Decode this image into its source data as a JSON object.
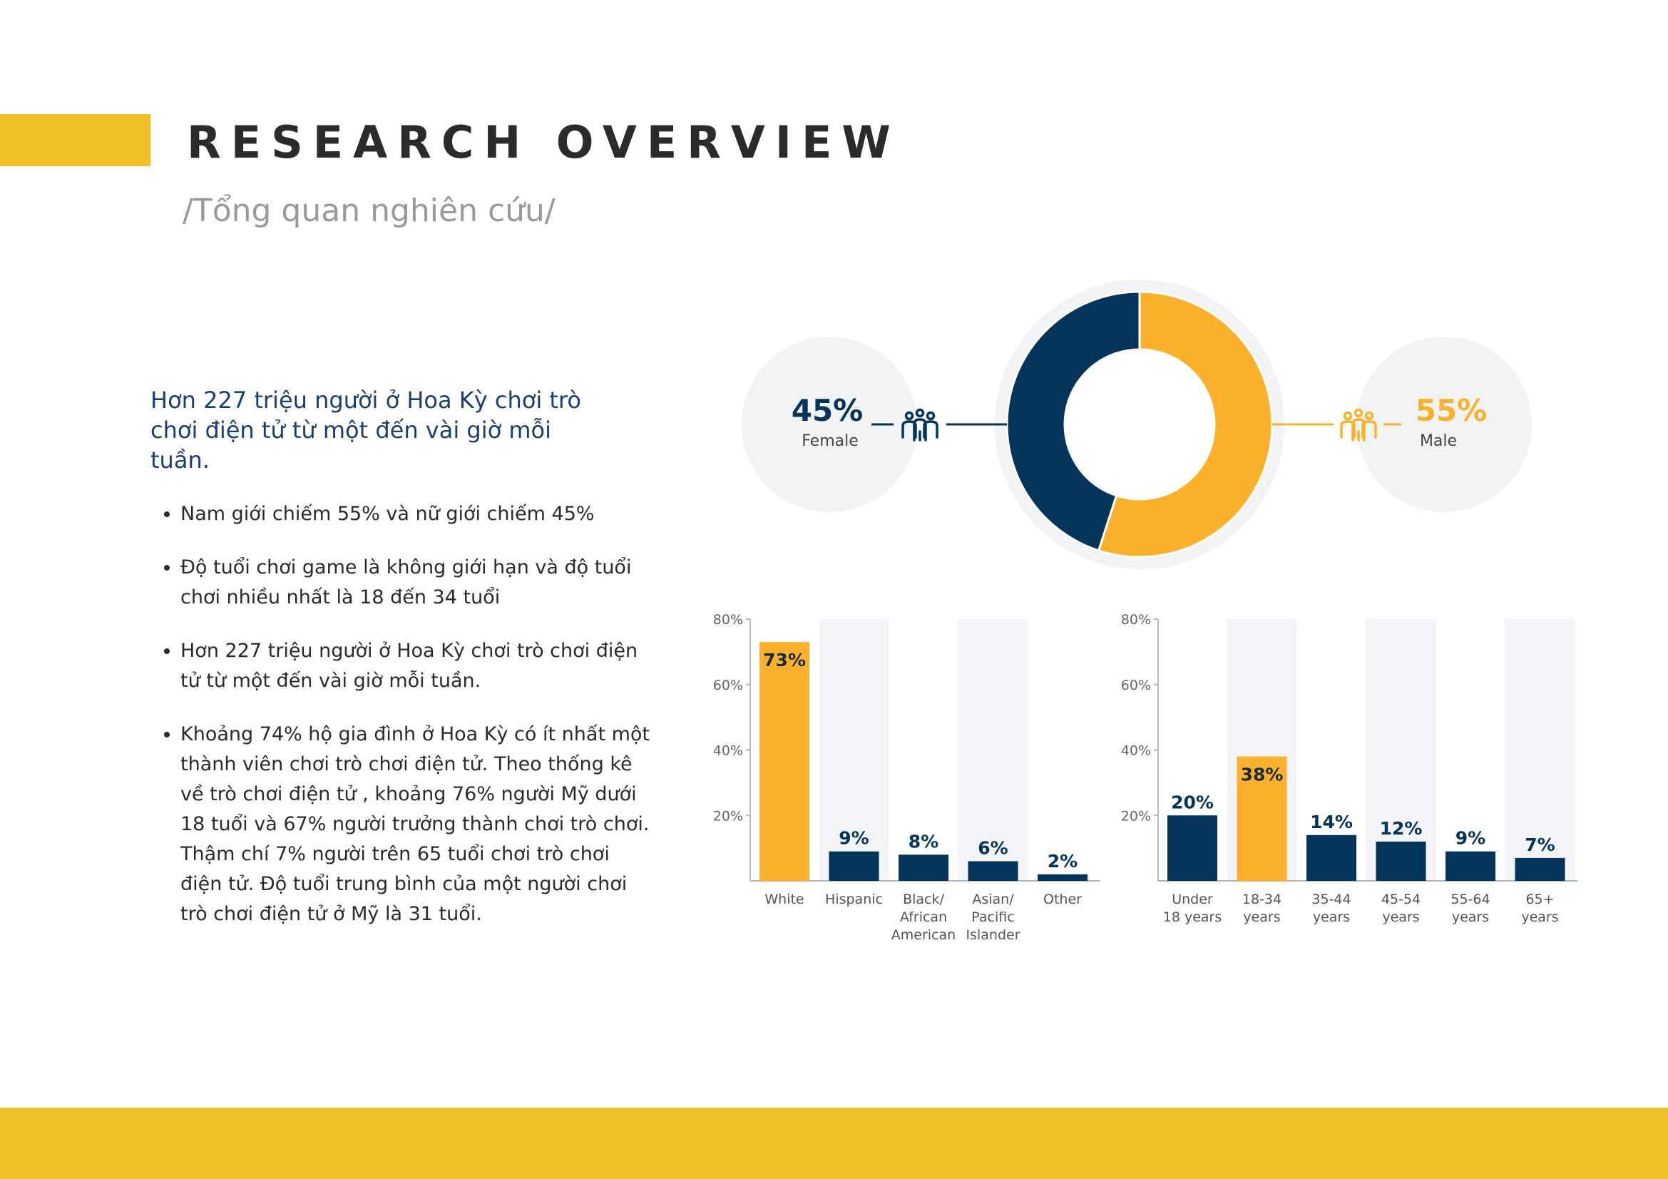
{
  "header": {
    "title": "RESEARCH OVERVIEW",
    "subtitle": "/Tổng quan nghiên cứu/"
  },
  "intro": {
    "heading": "Hơn 227 triệu người ở Hoa Kỳ chơi trò chơi điện tử từ một đến vài giờ mỗi tuần.",
    "bullets": [
      "Nam giới chiếm 55% và nữ giới chiếm 45%",
      "Độ tuổi chơi game là không giới hạn và độ tuổi chơi nhiều nhất là 18 đến 34 tuổi",
      "Hơn 227 triệu người ở Hoa Kỳ chơi trò chơi điện tử từ một đến vài giờ mỗi tuần.",
      "Khoảng 74% hộ gia đình ở Hoa Kỳ có ít nhất một thành viên chơi trò chơi điện tử. Theo thống kê về trò chơi điện tử , khoảng 76% người Mỹ dưới 18 tuổi và 67% người trưởng thành chơi trò chơi. Thậm chí 7% người trên 65 tuổi chơi trò chơi điện tử. Độ tuổi trung bình của một người chơi trò chơi điện tử ở Mỹ là 31 tuổi."
    ]
  },
  "colors": {
    "accent_yellow": "#F0BE25",
    "chart_yellow": "#FBB12C",
    "navy": "#05345A",
    "heading_blue": "#1C3F6E"
  },
  "chart_data": [
    {
      "type": "pie",
      "style": "donut",
      "categories": [
        "Female",
        "Male"
      ],
      "values": [
        45,
        55
      ],
      "value_labels": [
        "45%",
        "55%"
      ],
      "colors": [
        "#05345A",
        "#FBB12C"
      ],
      "icons": [
        "people-group-icon",
        "people-group-icon"
      ]
    },
    {
      "type": "bar",
      "categories": [
        "White",
        "Hispanic",
        "Black/ African American",
        "Asian/ Pacific Islander",
        "Other"
      ],
      "category_lines": [
        [
          "White"
        ],
        [
          "Hispanic"
        ],
        [
          "Black/",
          "African",
          "American"
        ],
        [
          "Asian/",
          "Pacific",
          "Islander"
        ],
        [
          "Other"
        ]
      ],
      "values": [
        73,
        9,
        8,
        6,
        2
      ],
      "value_labels": [
        "73%",
        "9%",
        "8%",
        "6%",
        "2%"
      ],
      "highlight_index": 0,
      "ylim": [
        0,
        80
      ],
      "yticks": [
        20,
        40,
        60,
        80
      ],
      "ytick_labels": [
        "20%",
        "40%",
        "60%",
        "80%"
      ],
      "grid": false
    },
    {
      "type": "bar",
      "categories": [
        "Under 18 years",
        "18-34 years",
        "35-44 years",
        "45-54 years",
        "55-64 years",
        "65+ years"
      ],
      "category_lines": [
        [
          "Under",
          "18 years"
        ],
        [
          "18-34",
          "years"
        ],
        [
          "35-44",
          "years"
        ],
        [
          "45-54",
          "years"
        ],
        [
          "55-64",
          "years"
        ],
        [
          "65+",
          "years"
        ]
      ],
      "values": [
        20,
        38,
        14,
        12,
        9,
        7
      ],
      "value_labels": [
        "20%",
        "38%",
        "14%",
        "12%",
        "9%",
        "7%"
      ],
      "highlight_index": 1,
      "ylim": [
        0,
        80
      ],
      "yticks": [
        20,
        40,
        60,
        80
      ],
      "ytick_labels": [
        "20%",
        "40%",
        "60%",
        "80%"
      ],
      "grid": false
    }
  ]
}
